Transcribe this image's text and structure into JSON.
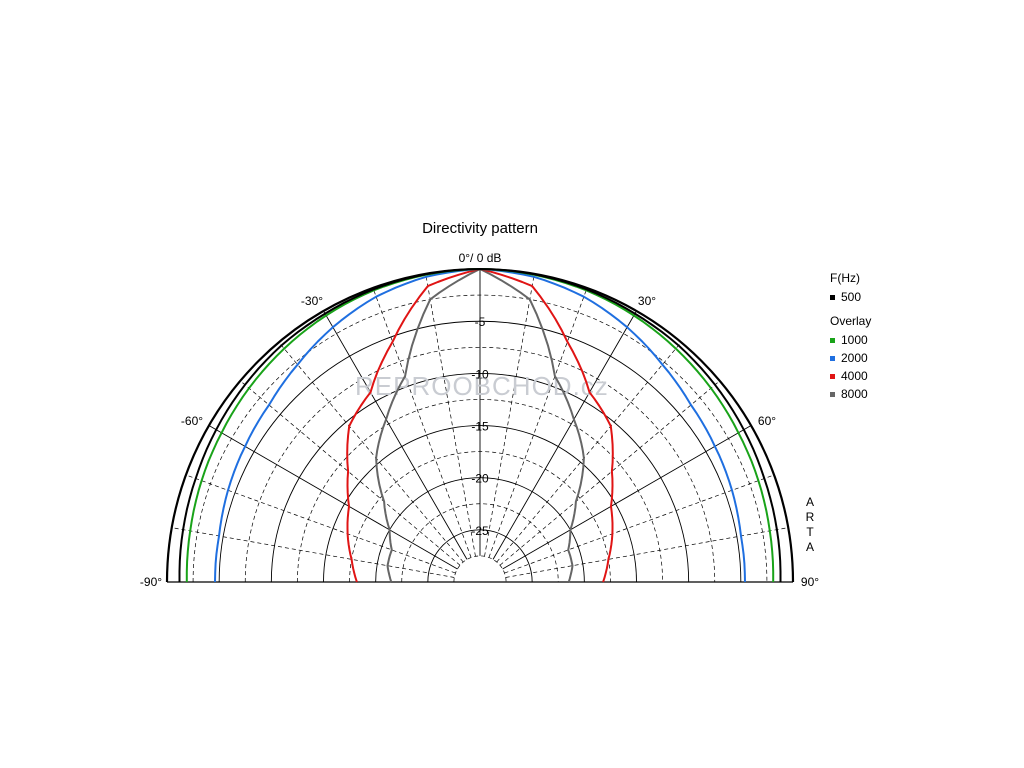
{
  "chart_data": {
    "type": "polar",
    "title": "Directivity pattern",
    "top_label": "0°/ 0 dB",
    "angle_range": [
      -90,
      90
    ],
    "radial_range_db": [
      -30,
      0
    ],
    "radial_ticks": [
      {
        "value": -5,
        "label": "-5"
      },
      {
        "value": -10,
        "label": "-10"
      },
      {
        "value": -15,
        "label": "-15"
      },
      {
        "value": -20,
        "label": "-20"
      },
      {
        "value": -25,
        "label": "-25"
      }
    ],
    "angle_labels": [
      {
        "angle": -90,
        "label": "-90°"
      },
      {
        "angle": -60,
        "label": "-60°"
      },
      {
        "angle": -30,
        "label": "-30°"
      },
      {
        "angle": 30,
        "label": "30°"
      },
      {
        "angle": 60,
        "label": "60°"
      },
      {
        "angle": 90,
        "label": "90°"
      }
    ],
    "grid": true,
    "legend": {
      "header": "F(Hz)",
      "overlay_header": "Overlay",
      "placement": "right"
    },
    "side_text": [
      "A",
      "R",
      "T",
      "A"
    ],
    "watermark": "REPROOBCHOD.cz",
    "angles": [
      0,
      10,
      20,
      30,
      40,
      50,
      60,
      70,
      80,
      90
    ],
    "series": [
      {
        "name": "500",
        "color": "#000000",
        "overlay": false,
        "db": [
          0,
          -0.05,
          -0.15,
          -0.3,
          -0.4,
          -0.6,
          -0.8,
          -1.0,
          -1.1,
          -1.2
        ]
      },
      {
        "name": "1000",
        "color": "#19a319",
        "overlay": true,
        "db": [
          0,
          -0.1,
          -0.25,
          -0.5,
          -0.8,
          -1.1,
          -1.4,
          -1.6,
          -1.8,
          -1.9
        ]
      },
      {
        "name": "2000",
        "color": "#1f6fe0",
        "overlay": true,
        "db": [
          0,
          -0.3,
          -0.9,
          -1.8,
          -2.8,
          -3.6,
          -4.0,
          -4.3,
          -4.6,
          -4.6
        ]
      },
      {
        "name": "4000",
        "color": "#e01414",
        "overlay": true,
        "db": [
          0,
          -1.2,
          -5.5,
          -9.0,
          -10.5,
          -13.5,
          -15.5,
          -16.5,
          -17.5,
          -18.2
        ]
      },
      {
        "name": "8000",
        "color": "#666666",
        "overlay": true,
        "db": [
          0,
          -2.5,
          -9.0,
          -12.0,
          -14.5,
          -18.0,
          -20.0,
          -21.0,
          -21.0,
          -21.5
        ]
      }
    ]
  }
}
